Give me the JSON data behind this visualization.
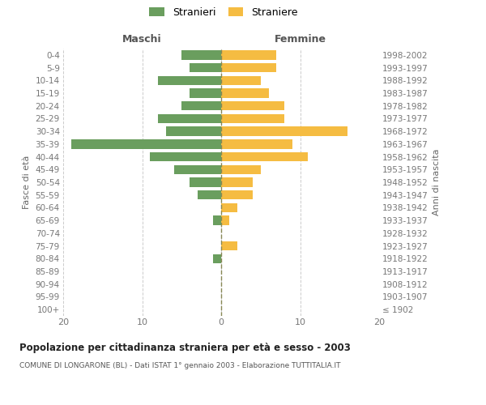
{
  "age_groups": [
    "100+",
    "95-99",
    "90-94",
    "85-89",
    "80-84",
    "75-79",
    "70-74",
    "65-69",
    "60-64",
    "55-59",
    "50-54",
    "45-49",
    "40-44",
    "35-39",
    "30-34",
    "25-29",
    "20-24",
    "15-19",
    "10-14",
    "5-9",
    "0-4"
  ],
  "birth_years": [
    "≤ 1902",
    "1903-1907",
    "1908-1912",
    "1913-1917",
    "1918-1922",
    "1923-1927",
    "1928-1932",
    "1933-1937",
    "1938-1942",
    "1943-1947",
    "1948-1952",
    "1953-1957",
    "1958-1962",
    "1963-1967",
    "1968-1972",
    "1973-1977",
    "1978-1982",
    "1983-1987",
    "1988-1992",
    "1993-1997",
    "1998-2002"
  ],
  "maschi": [
    0,
    0,
    0,
    0,
    1,
    0,
    0,
    1,
    0,
    3,
    4,
    6,
    9,
    19,
    7,
    8,
    5,
    4,
    8,
    4,
    5
  ],
  "femmine": [
    0,
    0,
    0,
    0,
    0,
    2,
    0,
    1,
    2,
    4,
    4,
    5,
    11,
    9,
    16,
    8,
    8,
    6,
    5,
    7,
    7
  ],
  "maschi_color": "#6a9e5e",
  "femmine_color": "#f5bc42",
  "background_color": "#ffffff",
  "grid_color": "#cccccc",
  "title": "Popolazione per cittadinanza straniera per età e sesso - 2003",
  "subtitle": "COMUNE DI LONGARONE (BL) - Dati ISTAT 1° gennaio 2003 - Elaborazione TUTTITALIA.IT",
  "xlabel_left": "Maschi",
  "xlabel_right": "Femmine",
  "ylabel_left": "Fasce di età",
  "ylabel_right": "Anni di nascita",
  "legend_stranieri": "Stranieri",
  "legend_straniere": "Straniere",
  "xlim": 20,
  "bar_height": 0.72
}
